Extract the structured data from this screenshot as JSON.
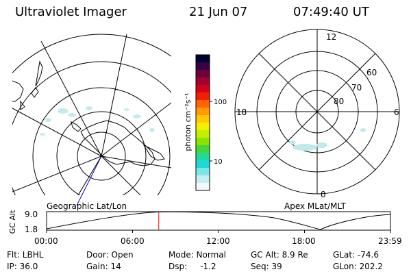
{
  "header": {
    "title": "Ultraviolet Imager",
    "date": "21 Jun 07",
    "time": "07:49:40 UT"
  },
  "left_panel": {
    "caption": "Geographic Lat/Lon"
  },
  "right_panel": {
    "caption": "Apex MLat/MLT",
    "mlt_labels": {
      "top": "12",
      "right": "6",
      "bottom": "0",
      "left": "18"
    },
    "lat_labels": [
      "60",
      "70",
      "80"
    ]
  },
  "colorbar": {
    "unit_label": "photon cm⁻²s⁻¹",
    "ticks": [
      "100",
      "10"
    ],
    "colors": [
      "#000033",
      "#3b0040",
      "#6e003a",
      "#a4002c",
      "#d4001a",
      "#f02000",
      "#ff6400",
      "#ff9a00",
      "#ffc800",
      "#f0f000",
      "#c4f000",
      "#88e400",
      "#40d840",
      "#22d8a0",
      "#20d8d8",
      "#80e4e4",
      "#c6eeee",
      "#f4f8f8"
    ]
  },
  "altitude_strip": {
    "axis_label": "GC Alt",
    "y_ticks": [
      "9.0",
      "1.8"
    ],
    "x_ticks": [
      "00:00",
      "06:00",
      "12:00",
      "18:00",
      "23:59"
    ],
    "current_marker_hour": 7.83
  },
  "footer": {
    "filter": "Flt: LBHL",
    "door": "Door: Open",
    "mode": "Mode: Normal",
    "gc_alt": "GC Alt: 8.9 Re",
    "glat": "GLat: -74.6",
    "ip": "IP: 36.0",
    "gain": "Gain: 14",
    "dsp": "Dsp:     -1.2",
    "seq": "Seq: 39",
    "glon": "GLon: 202.2"
  }
}
